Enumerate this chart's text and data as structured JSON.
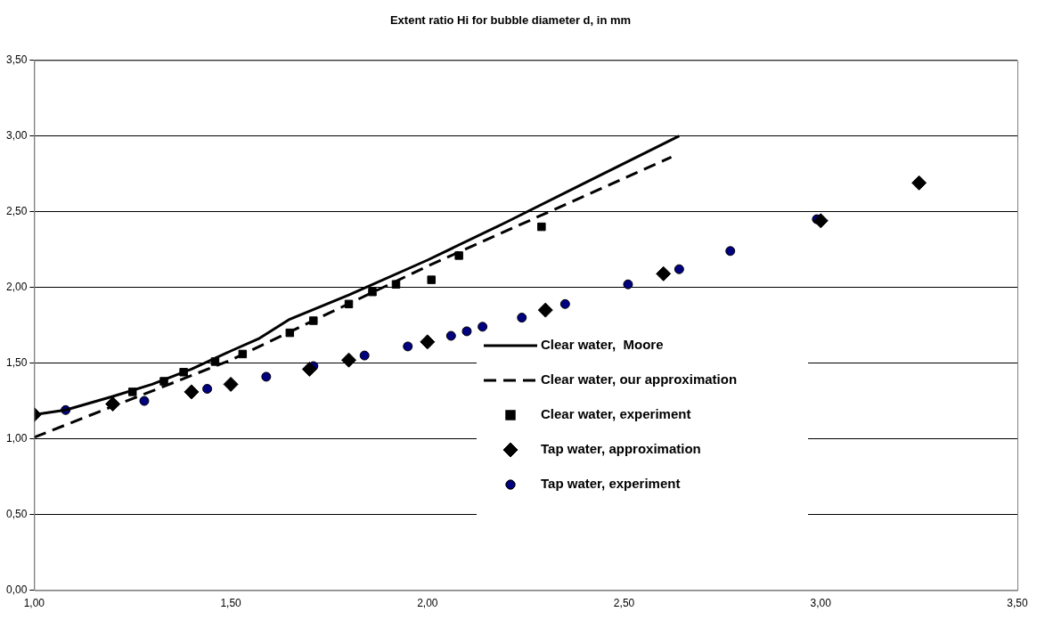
{
  "chart_data": {
    "type": "scatter",
    "title": "Extent ratio Hi for bubble diameter d, in mm",
    "xlim": [
      1,
      3.5
    ],
    "xticks": [
      {
        "value": 1,
        "label": "1,00"
      },
      {
        "value": 1.5,
        "label": "1,50"
      },
      {
        "value": 2,
        "label": "2,00"
      },
      {
        "value": 2.5,
        "label": "2,50"
      },
      {
        "value": 3,
        "label": "3,00"
      },
      {
        "value": 3.5,
        "label": "3,50"
      }
    ],
    "ylim": [
      0,
      3.5
    ],
    "yticks": [
      {
        "value": 0,
        "label": "0,00"
      },
      {
        "value": 0.5,
        "label": "0,50"
      },
      {
        "value": 1,
        "label": "1,00"
      },
      {
        "value": 1.5,
        "label": "1,50"
      },
      {
        "value": 2,
        "label": "2,00"
      },
      {
        "value": 2.5,
        "label": "2,50"
      },
      {
        "value": 3,
        "label": "3,00"
      },
      {
        "value": 3.5,
        "label": "3,50"
      }
    ],
    "grid": "y",
    "legend": "center",
    "series": [
      {
        "name": "Clear water,  Moore",
        "type": "line",
        "line_style": "solid",
        "marker": "none",
        "color": "#000000",
        "x": [
          1.0,
          1.08,
          1.2,
          1.3,
          1.4,
          1.5,
          1.57,
          1.65,
          1.8,
          2.0,
          2.2,
          2.4,
          2.64
        ],
        "values": [
          1.16,
          1.19,
          1.28,
          1.36,
          1.46,
          1.58,
          1.66,
          1.79,
          1.95,
          2.18,
          2.43,
          2.69,
          3.0
        ]
      },
      {
        "name": "Clear water, our approximation",
        "type": "line",
        "line_style": "dashed",
        "marker": "none",
        "color": "#000000",
        "x": [
          1.0,
          1.5,
          2.0,
          2.62
        ],
        "values": [
          1.01,
          1.52,
          2.14,
          2.86
        ]
      },
      {
        "name": "Clear water, experiment",
        "type": "scatter",
        "marker": "square",
        "color": "#000000",
        "x": [
          1.25,
          1.33,
          1.38,
          1.46,
          1.53,
          1.65,
          1.71,
          1.8,
          1.86,
          1.92,
          2.01,
          2.08,
          2.29
        ],
        "values": [
          1.31,
          1.38,
          1.44,
          1.51,
          1.56,
          1.7,
          1.78,
          1.89,
          1.97,
          2.02,
          2.05,
          2.21,
          2.4
        ]
      },
      {
        "name": "Tap water, approximation",
        "type": "scatter",
        "marker": "diamond",
        "color": "#000000",
        "x": [
          1.0,
          1.2,
          1.4,
          1.5,
          1.7,
          1.8,
          2.0,
          2.3,
          2.6,
          3.0,
          3.25
        ],
        "values": [
          1.16,
          1.23,
          1.31,
          1.36,
          1.46,
          1.52,
          1.64,
          1.85,
          2.09,
          2.44,
          2.69
        ]
      },
      {
        "name": "Tap water, experiment",
        "type": "scatter",
        "marker": "circle",
        "color": "#000080",
        "x": [
          1.08,
          1.28,
          1.44,
          1.59,
          1.71,
          1.84,
          1.95,
          2.06,
          2.1,
          2.14,
          2.24,
          2.35,
          2.51,
          2.64,
          2.77,
          2.99
        ],
        "values": [
          1.19,
          1.25,
          1.33,
          1.41,
          1.48,
          1.55,
          1.61,
          1.68,
          1.71,
          1.74,
          1.8,
          1.89,
          2.02,
          2.12,
          2.24,
          2.45
        ]
      }
    ]
  }
}
